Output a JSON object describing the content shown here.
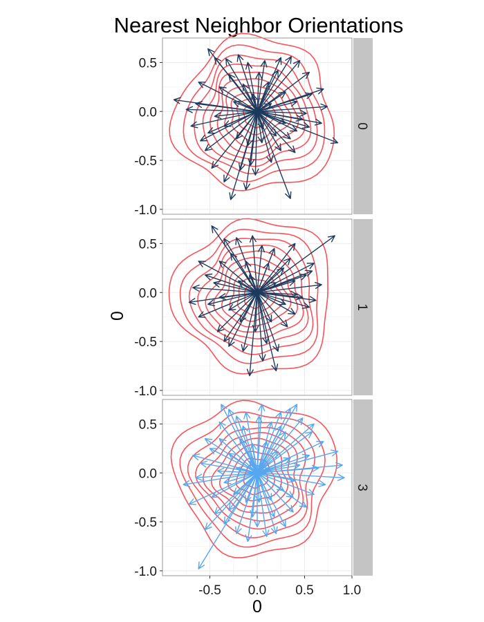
{
  "chart_data": {
    "type": "faceted vector field with density contours",
    "title": "Nearest Neighbor Orientations",
    "xlabel": "0",
    "ylabel": "0",
    "xlim": [
      -1.0,
      1.0
    ],
    "ylim": [
      -1.05,
      0.75
    ],
    "x_ticks": [
      "-0.5",
      "0.0",
      "0.5",
      "1.0"
    ],
    "y_ticks": [
      "0.5",
      "0.0",
      "-0.5",
      "-1.0"
    ],
    "grid": true,
    "facet_strip_position": "right",
    "colors": {
      "contour": "#f8535a",
      "arrow_dark": "#1d3a5c",
      "arrow_light": "#56a6f0",
      "panel_border": "#9a9a9a",
      "strip_fill": "#c4c4c4",
      "grid": "#ebebeb"
    },
    "facets": [
      {
        "label": "0",
        "arrow_color": "#1d3a5c",
        "contour_radii": [
          0.12,
          0.19,
          0.26,
          0.33,
          0.4,
          0.47,
          0.54,
          0.62,
          0.71,
          0.82
        ],
        "vectors": [
          [
            -0.52,
            0.64
          ],
          [
            -0.45,
            0.55
          ],
          [
            -0.33,
            0.54
          ],
          [
            -0.2,
            0.58
          ],
          [
            -0.1,
            0.5
          ],
          [
            0.02,
            0.4
          ],
          [
            0.08,
            0.52
          ],
          [
            0.25,
            0.55
          ],
          [
            0.36,
            0.56
          ],
          [
            0.45,
            0.52
          ],
          [
            0.55,
            0.4
          ],
          [
            0.7,
            0.23
          ],
          [
            0.74,
            0.05
          ],
          [
            0.85,
            -0.32
          ],
          [
            0.68,
            -0.12
          ],
          [
            0.55,
            -0.16
          ],
          [
            0.42,
            -0.2
          ],
          [
            0.35,
            -0.28
          ],
          [
            0.25,
            -0.4
          ],
          [
            0.15,
            -0.52
          ],
          [
            0.35,
            -0.89
          ],
          [
            -0.02,
            -0.65
          ],
          [
            -0.07,
            -0.55
          ],
          [
            -0.18,
            -0.6
          ],
          [
            -0.28,
            -0.9
          ],
          [
            -0.35,
            -0.72
          ],
          [
            -0.48,
            -0.58
          ],
          [
            -0.55,
            -0.4
          ],
          [
            -0.6,
            -0.3
          ],
          [
            -0.7,
            -0.15
          ],
          [
            -0.88,
            0.12
          ],
          [
            -0.75,
            0.02
          ],
          [
            -0.65,
            0.08
          ],
          [
            -0.62,
            0.3
          ],
          [
            -0.4,
            0.25
          ],
          [
            -0.3,
            0.38
          ],
          [
            -0.15,
            0.28
          ],
          [
            0.12,
            0.3
          ],
          [
            0.3,
            0.2
          ],
          [
            0.42,
            0.1
          ],
          [
            0.52,
            -0.02
          ],
          [
            0.48,
            -0.08
          ],
          [
            0.3,
            -0.12
          ],
          [
            0.2,
            -0.25
          ],
          [
            0.05,
            -0.32
          ],
          [
            -0.1,
            -0.35
          ],
          [
            -0.22,
            -0.28
          ],
          [
            -0.35,
            -0.15
          ],
          [
            -0.45,
            -0.05
          ],
          [
            -0.25,
            0.1
          ],
          [
            0.15,
            0.08
          ],
          [
            0.22,
            0.42
          ],
          [
            -0.05,
            0.18
          ],
          [
            0.06,
            -0.18
          ],
          [
            0.58,
            0.18
          ],
          [
            -0.52,
            -0.22
          ],
          [
            0.4,
            -0.42
          ],
          [
            -0.12,
            -0.8
          ]
        ]
      },
      {
        "label": "1",
        "arrow_color": "#1d3a5c",
        "contour_radii": [
          0.12,
          0.19,
          0.26,
          0.33,
          0.4,
          0.47,
          0.54,
          0.62,
          0.71,
          0.82
        ],
        "vectors": [
          [
            -0.48,
            0.68
          ],
          [
            -0.35,
            0.55
          ],
          [
            -0.22,
            0.56
          ],
          [
            -0.05,
            0.58
          ],
          [
            0.05,
            0.48
          ],
          [
            0.18,
            0.45
          ],
          [
            0.4,
            0.5
          ],
          [
            0.82,
            0.58
          ],
          [
            0.6,
            0.3
          ],
          [
            0.52,
            0.18
          ],
          [
            0.68,
            0.08
          ],
          [
            0.48,
            -0.05
          ],
          [
            0.55,
            -0.15
          ],
          [
            0.4,
            -0.22
          ],
          [
            0.32,
            -0.35
          ],
          [
            0.22,
            -0.6
          ],
          [
            0.2,
            -0.8
          ],
          [
            0.06,
            -0.7
          ],
          [
            -0.08,
            -0.85
          ],
          [
            -0.15,
            -0.6
          ],
          [
            -0.3,
            -0.55
          ],
          [
            -0.42,
            -0.4
          ],
          [
            -0.62,
            -0.25
          ],
          [
            -0.72,
            -0.1
          ],
          [
            -0.68,
            0.05
          ],
          [
            -0.55,
            0.18
          ],
          [
            -0.62,
            0.32
          ],
          [
            -0.4,
            0.32
          ],
          [
            -0.28,
            0.4
          ],
          [
            -0.12,
            0.32
          ],
          [
            0.12,
            0.3
          ],
          [
            0.28,
            0.25
          ],
          [
            0.4,
            0.12
          ],
          [
            0.42,
            -0.02
          ],
          [
            0.3,
            -0.12
          ],
          [
            0.15,
            -0.3
          ],
          [
            -0.02,
            -0.4
          ],
          [
            -0.18,
            -0.3
          ],
          [
            -0.3,
            -0.18
          ],
          [
            -0.4,
            -0.05
          ],
          [
            -0.2,
            0.12
          ],
          [
            0.2,
            0.1
          ],
          [
            0.62,
            -0.08
          ],
          [
            -0.52,
            -0.12
          ],
          [
            0.1,
            -0.52
          ],
          [
            -0.08,
            0.18
          ],
          [
            0.35,
            0.35
          ],
          [
            -0.35,
            -0.5
          ],
          [
            0.58,
            0.22
          ],
          [
            -0.46,
            0.1
          ]
        ]
      },
      {
        "label": "3",
        "arrow_color": "#56a6f0",
        "contour_radii": [
          0.12,
          0.19,
          0.26,
          0.33,
          0.4,
          0.47,
          0.54,
          0.62,
          0.71,
          0.82
        ],
        "vectors": [
          [
            -0.38,
            0.7
          ],
          [
            -0.3,
            0.65
          ],
          [
            -0.22,
            0.58
          ],
          [
            -0.12,
            0.62
          ],
          [
            0.02,
            0.58
          ],
          [
            0.15,
            0.52
          ],
          [
            0.25,
            0.62
          ],
          [
            0.35,
            0.66
          ],
          [
            0.42,
            0.7
          ],
          [
            0.48,
            0.56
          ],
          [
            0.58,
            0.42
          ],
          [
            0.7,
            0.32
          ],
          [
            0.85,
            0.22
          ],
          [
            0.9,
            0.08
          ],
          [
            0.92,
            -0.05
          ],
          [
            0.72,
            -0.12
          ],
          [
            0.6,
            -0.22
          ],
          [
            0.52,
            -0.35
          ],
          [
            0.38,
            -0.4
          ],
          [
            0.3,
            -0.55
          ],
          [
            0.18,
            -0.45
          ],
          [
            0.1,
            -0.65
          ],
          [
            0.0,
            -0.55
          ],
          [
            -0.1,
            -0.7
          ],
          [
            -0.22,
            -0.62
          ],
          [
            -0.35,
            -0.52
          ],
          [
            -0.45,
            -0.42
          ],
          [
            -0.62,
            -0.98
          ],
          [
            -0.55,
            -0.58
          ],
          [
            -0.72,
            -0.32
          ],
          [
            -0.78,
            -0.12
          ],
          [
            -0.65,
            -0.05
          ],
          [
            -0.6,
            0.1
          ],
          [
            -0.68,
            0.18
          ],
          [
            -0.5,
            0.25
          ],
          [
            -0.4,
            0.35
          ],
          [
            -0.3,
            0.2
          ],
          [
            -0.18,
            0.35
          ],
          [
            -0.05,
            0.3
          ],
          [
            0.1,
            0.32
          ],
          [
            0.22,
            0.22
          ],
          [
            0.35,
            0.15
          ],
          [
            0.45,
            0.08
          ],
          [
            0.4,
            -0.08
          ],
          [
            0.28,
            -0.18
          ],
          [
            0.15,
            -0.28
          ],
          [
            0.02,
            -0.3
          ],
          [
            -0.12,
            -0.3
          ],
          [
            -0.25,
            -0.22
          ],
          [
            -0.35,
            -0.1
          ],
          [
            -0.42,
            0.02
          ],
          [
            -0.22,
            0.05
          ],
          [
            -0.08,
            0.12
          ],
          [
            0.12,
            0.05
          ],
          [
            0.3,
            0.42
          ],
          [
            0.55,
            0.18
          ],
          [
            0.65,
            0.05
          ],
          [
            -0.48,
            -0.25
          ],
          [
            0.2,
            -0.62
          ],
          [
            -0.15,
            0.48
          ],
          [
            -0.55,
            0.35
          ],
          [
            0.05,
            0.7
          ],
          [
            0.38,
            -0.25
          ],
          [
            -0.3,
            -0.38
          ],
          [
            0.6,
            0.5
          ],
          [
            -0.05,
            -0.45
          ],
          [
            0.25,
            0.48
          ],
          [
            -0.4,
            0.52
          ]
        ]
      }
    ]
  }
}
